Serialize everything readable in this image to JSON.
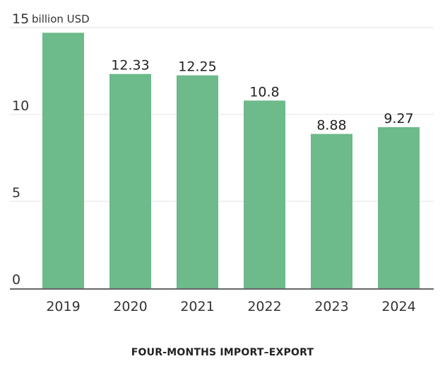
{
  "chart_data": {
    "type": "bar",
    "categories": [
      "2019",
      "2020",
      "2021",
      "2022",
      "2023",
      "2024"
    ],
    "values": [
      14.7,
      12.33,
      12.25,
      10.8,
      8.88,
      9.27
    ],
    "data_labels": [
      "",
      "12.33",
      "12.25",
      "10.8",
      "8.88",
      "9.27"
    ],
    "y_ticks": [
      0,
      5,
      10,
      15
    ],
    "y_tick_labels": [
      "0",
      "5",
      "10",
      "15"
    ],
    "y_unit": "billion USD",
    "ylim": [
      0,
      15
    ],
    "grid": true,
    "bar_color": "#6dba8a",
    "caption": "FOUR-MONTHS IMPORT–EXPORT"
  }
}
